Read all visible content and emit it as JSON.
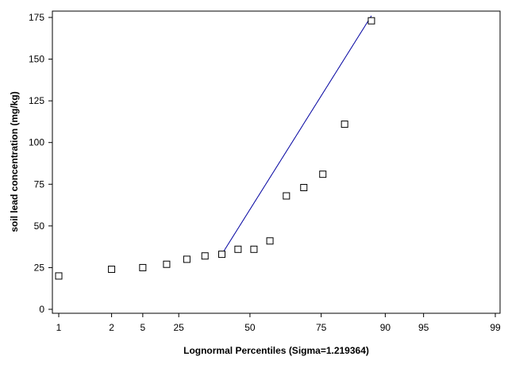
{
  "chart_data": {
    "type": "scatter",
    "title": "",
    "xlabel": "Lognormal Percentiles (Sigma=1.219364)",
    "ylabel": "soil lead concentration (mg/kg)",
    "x_scale": "lognormal-probability",
    "x_ticks": [
      {
        "label": "1",
        "percentile": 3.5
      },
      {
        "label": "2",
        "percentile": 9.5
      },
      {
        "label": "5",
        "percentile": 15.5
      },
      {
        "label": "25",
        "percentile": 25
      },
      {
        "label": "50",
        "percentile": 50
      },
      {
        "label": "75",
        "percentile": 75
      },
      {
        "label": "90",
        "percentile": 90
      },
      {
        "label": "95",
        "percentile": 95
      },
      {
        "label": "99",
        "percentile": 99
      }
    ],
    "y_ticks": [
      0,
      25,
      50,
      75,
      100,
      125,
      150,
      175
    ],
    "ylim": [
      0,
      175
    ],
    "grid": false,
    "series": [
      {
        "marker": "open-square",
        "points": [
          {
            "x": 3.5,
            "y": 20
          },
          {
            "x": 9.5,
            "y": 24
          },
          {
            "x": 15.5,
            "y": 25
          },
          {
            "x": 21.5,
            "y": 27
          },
          {
            "x": 27.5,
            "y": 30
          },
          {
            "x": 33.5,
            "y": 32
          },
          {
            "x": 39.5,
            "y": 33
          },
          {
            "x": 45.5,
            "y": 36
          },
          {
            "x": 51.5,
            "y": 36
          },
          {
            "x": 57.5,
            "y": 41
          },
          {
            "x": 63.5,
            "y": 68
          },
          {
            "x": 69.5,
            "y": 73
          },
          {
            "x": 75.5,
            "y": 81
          },
          {
            "x": 81.5,
            "y": 111
          },
          {
            "x": 87.5,
            "y": 173
          }
        ]
      }
    ],
    "fit_line": {
      "color": "#0000a0",
      "from": {
        "x": 39.5,
        "y": 33
      },
      "to": {
        "x": 87.5,
        "y": 176
      }
    }
  }
}
